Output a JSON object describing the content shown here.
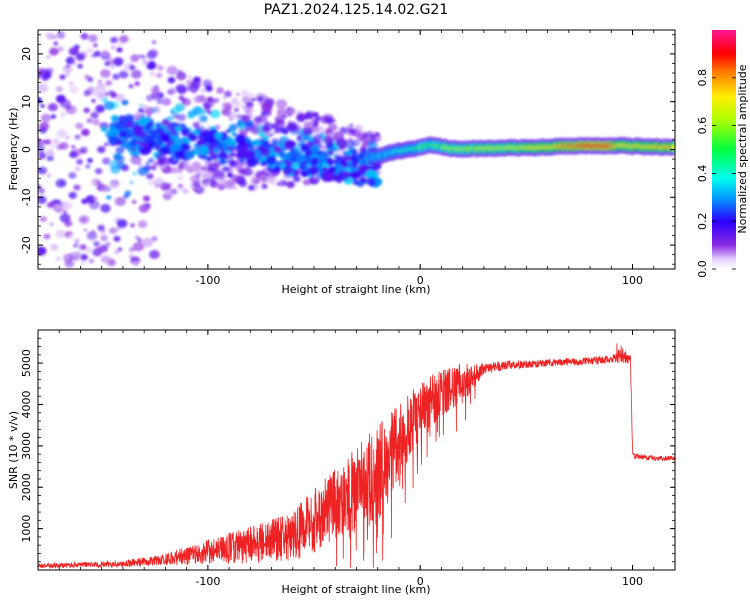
{
  "title": "PAZ1.2024.125.14.02.G21",
  "colors": {
    "snr_line": "#ee2222",
    "axes": "#000000",
    "spectrogram_background": "#ffffff"
  },
  "chart_data": [
    {
      "type": "heatmap",
      "name": "spectrogram",
      "xlabel": "Height of straight line (km)",
      "ylabel": "Frequency (Hz)",
      "xlim": [
        -180,
        120
      ],
      "ylim": [
        -25,
        25
      ],
      "xticks": [
        -100,
        0,
        100
      ],
      "yticks": [
        -20,
        -10,
        0,
        10,
        20
      ],
      "colorbar": {
        "label": "Normalized spectral amplitude",
        "range": [
          0,
          1
        ],
        "ticks": [
          "0.0",
          "0.2",
          "0.4",
          "0.6",
          "0.8"
        ],
        "colormap": "rainbow (white-purple-blue-cyan-green-yellow-red-pink)"
      },
      "features": {
        "carrier_segments_x_y_amp": [
          [
            -20,
            -1.5,
            0.3
          ],
          [
            -15,
            -0.8,
            0.35
          ],
          [
            -10,
            -0.3,
            0.4
          ],
          [
            -5,
            0.0,
            0.45
          ],
          [
            0,
            0.4,
            0.5
          ],
          [
            5,
            1.0,
            0.5
          ],
          [
            10,
            0.6,
            0.55
          ],
          [
            15,
            0.2,
            0.6
          ],
          [
            20,
            0.1,
            0.6
          ],
          [
            30,
            0.2,
            0.62
          ],
          [
            40,
            0.3,
            0.64
          ],
          [
            50,
            0.4,
            0.66
          ],
          [
            60,
            0.5,
            0.7
          ],
          [
            70,
            0.7,
            0.82
          ],
          [
            80,
            0.8,
            0.88
          ],
          [
            90,
            0.8,
            0.86
          ],
          [
            95,
            0.9,
            0.7
          ],
          [
            100,
            0.7,
            0.7
          ],
          [
            105,
            0.6,
            0.72
          ],
          [
            110,
            0.5,
            0.74
          ],
          [
            120,
            0.5,
            0.74
          ]
        ],
        "scattered_noise_region_x": [
          -180,
          -20
        ]
      }
    },
    {
      "type": "line",
      "name": "snr",
      "xlabel": "Height of straight line (km)",
      "ylabel": "SNR (10 * v/v)",
      "xlim": [
        -180,
        120
      ],
      "ylim": [
        0,
        5800
      ],
      "xticks": [
        -100,
        0,
        100
      ],
      "yticks": [
        1000,
        2000,
        3000,
        4000,
        5000
      ],
      "envelope_x": [
        -180,
        -140,
        -120,
        -100,
        -80,
        -60,
        -50,
        -40,
        -30,
        -20,
        -15,
        -10,
        -5,
        0,
        10,
        20,
        25,
        30,
        40,
        60,
        80,
        90,
        95,
        99,
        100,
        101,
        110,
        120
      ],
      "envelope_y": [
        100,
        150,
        250,
        450,
        600,
        800,
        1200,
        1600,
        1900,
        2300,
        2700,
        3100,
        3500,
        3800,
        4300,
        4500,
        4700,
        4850,
        4950,
        5000,
        5050,
        5100,
        5200,
        5100,
        2900,
        2750,
        2700,
        2700
      ],
      "noise_amplitude_y": [
        60,
        80,
        150,
        300,
        450,
        600,
        800,
        900,
        1100,
        1200,
        1100,
        900,
        800,
        700,
        600,
        500,
        300,
        150,
        100,
        90,
        90,
        100,
        200,
        120,
        100,
        60,
        60,
        60
      ]
    }
  ]
}
